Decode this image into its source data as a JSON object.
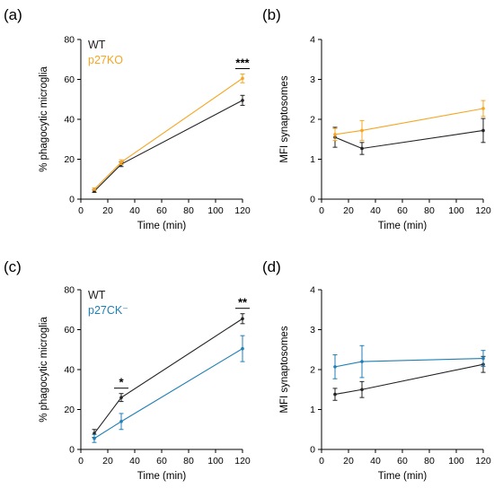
{
  "colors": {
    "wt": "#222222",
    "p27ko": "#f5a623",
    "p27ck": "#1f7fb5"
  },
  "chart_data": [
    {
      "type": "line",
      "panel": "(a)",
      "xlabel": "Time (min)",
      "ylabel": "% phagocytic microglia",
      "xlim": [
        0,
        120
      ],
      "ylim": [
        0,
        80
      ],
      "xticks": [
        "0",
        "20",
        "40",
        "60",
        "80",
        "100",
        "120"
      ],
      "yticks": [
        "0",
        "20",
        "40",
        "60",
        "80"
      ],
      "x": [
        10,
        30,
        120
      ],
      "series": [
        {
          "name": "WT",
          "color": "#222222",
          "values": [
            4,
            17.5,
            49.5
          ],
          "errors": [
            0.6,
            1.2,
            2.5
          ]
        },
        {
          "name": "p27KO",
          "color": "#f5a623",
          "values": [
            5,
            18.5,
            60.5
          ],
          "errors": [
            0.6,
            1.2,
            2.2
          ]
        }
      ],
      "annotations": [
        {
          "x": 120,
          "text": "***"
        }
      ],
      "legend": "top-left"
    },
    {
      "type": "line",
      "panel": "(b)",
      "xlabel": "Time (min)",
      "ylabel": "MFI synaptosomes",
      "xlim": [
        0,
        120
      ],
      "ylim": [
        0,
        4
      ],
      "xticks": [
        "0",
        "20",
        "40",
        "60",
        "80",
        "100",
        "120"
      ],
      "yticks": [
        "0",
        "1",
        "2",
        "3",
        "4"
      ],
      "x": [
        10,
        30,
        120
      ],
      "series": [
        {
          "name": "WT",
          "color": "#222222",
          "values": [
            1.55,
            1.27,
            1.72
          ],
          "errors": [
            0.25,
            0.15,
            0.3
          ]
        },
        {
          "name": "p27KO",
          "color": "#f5a623",
          "values": [
            1.62,
            1.72,
            2.27
          ],
          "errors": [
            0.15,
            0.25,
            0.2
          ]
        }
      ],
      "annotations": []
    },
    {
      "type": "line",
      "panel": "(c)",
      "xlabel": "Time (min)",
      "ylabel": "% phagocytic microglia",
      "xlim": [
        0,
        120
      ],
      "ylim": [
        0,
        80
      ],
      "xticks": [
        "0",
        "20",
        "40",
        "60",
        "80",
        "100",
        "120"
      ],
      "yticks": [
        "0",
        "20",
        "40",
        "60",
        "80"
      ],
      "x": [
        10,
        30,
        120
      ],
      "series": [
        {
          "name": "WT",
          "color": "#222222",
          "values": [
            8,
            26,
            65.5
          ],
          "errors": [
            2,
            2,
            2.5
          ]
        },
        {
          "name": "p27CK⁻",
          "color": "#1f7fb5",
          "values": [
            5.5,
            14,
            50.5
          ],
          "errors": [
            2,
            4,
            6.5
          ]
        }
      ],
      "annotations": [
        {
          "x": 30,
          "text": "*"
        },
        {
          "x": 120,
          "text": "**"
        }
      ],
      "legend": "top-left"
    },
    {
      "type": "line",
      "panel": "(d)",
      "xlabel": "Time (min)",
      "ylabel": "MFI synaptosomes",
      "xlim": [
        0,
        120
      ],
      "ylim": [
        0,
        4
      ],
      "xticks": [
        "0",
        "20",
        "40",
        "60",
        "80",
        "100",
        "120"
      ],
      "yticks": [
        "0",
        "1",
        "2",
        "3",
        "4"
      ],
      "x": [
        10,
        30,
        120
      ],
      "series": [
        {
          "name": "WT",
          "color": "#222222",
          "values": [
            1.38,
            1.5,
            2.13
          ],
          "errors": [
            0.15,
            0.2,
            0.2
          ]
        },
        {
          "name": "p27CK⁻",
          "color": "#1f7fb5",
          "values": [
            2.07,
            2.2,
            2.28
          ],
          "errors": [
            0.3,
            0.4,
            0.2
          ]
        }
      ],
      "annotations": []
    }
  ]
}
